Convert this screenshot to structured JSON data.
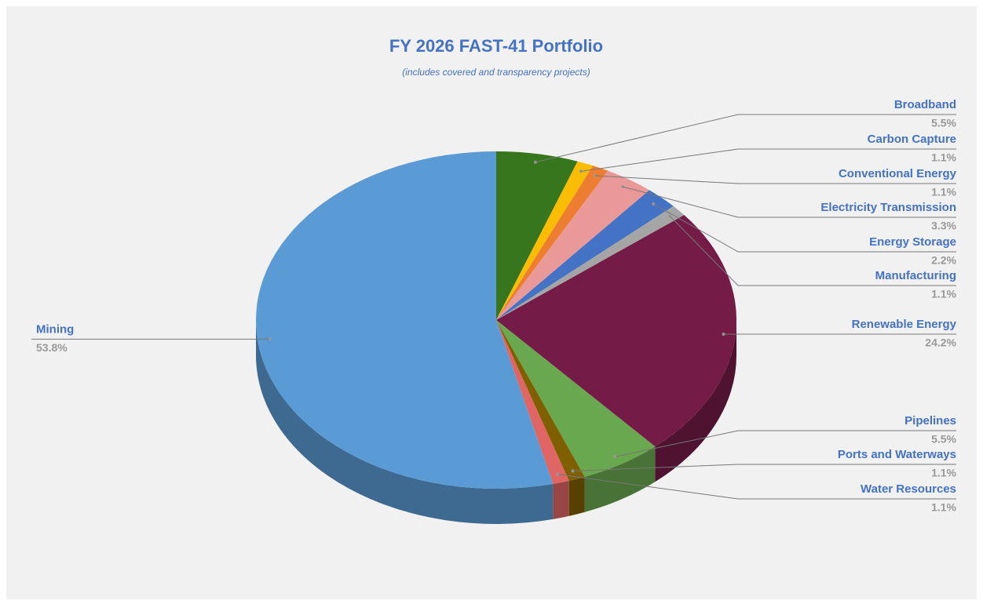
{
  "chart_data": {
    "type": "pie",
    "title": "FY 2026 FAST-41 Portfolio",
    "subtitle": "(includes covered and transparency projects)",
    "categories": [
      "Broadband",
      "Carbon Capture",
      "Conventional Energy",
      "Electricity Transmission",
      "Energy Storage",
      "Manufacturing",
      "Renewable Energy",
      "Pipelines",
      "Ports and Waterways",
      "Water Resources",
      "Mining"
    ],
    "values": [
      5.5,
      1.1,
      1.1,
      3.3,
      2.2,
      1.1,
      24.2,
      5.5,
      1.1,
      1.1,
      53.8
    ],
    "value_labels": [
      "5.5%",
      "1.1%",
      "1.1%",
      "3.3%",
      "2.2%",
      "1.1%",
      "24.2%",
      "5.5%",
      "1.1%",
      "1.1%",
      "53.8%"
    ],
    "colors": [
      "#38761d",
      "#fbbc04",
      "#ed7d31",
      "#ea9999",
      "#4472c4",
      "#a5a5a5",
      "#741b47",
      "#6aa84f",
      "#7f6000",
      "#e06666",
      "#5b9bd5"
    ]
  }
}
